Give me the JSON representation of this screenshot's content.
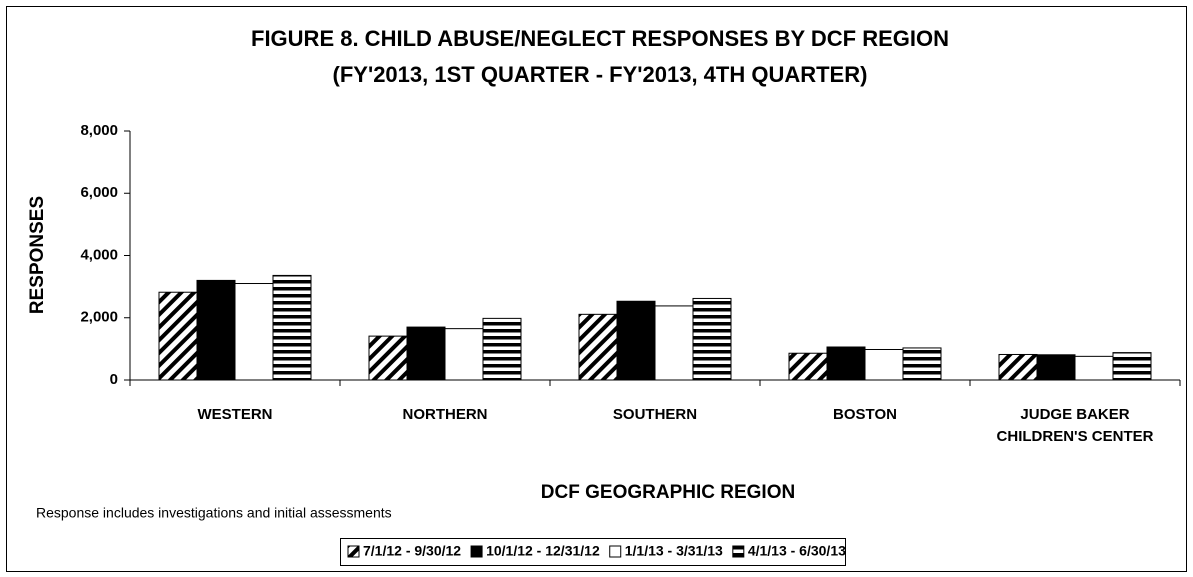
{
  "chart_data": {
    "type": "bar",
    "title": "FIGURE 8. CHILD ABUSE/NEGLECT RESPONSES BY DCF REGION",
    "subtitle": "(FY'2013, 1ST QUARTER - FY'2013, 4TH QUARTER)",
    "x_label": "DCF GEOGRAPHIC REGION",
    "y_label": "RESPONSES",
    "annotation": "Response includes investigations and initial assessments",
    "categories": [
      "WESTERN",
      "NORTHERN",
      "SOUTHERN",
      "BOSTON",
      "JUDGE BAKER CHILDREN'S CENTER"
    ],
    "series": [
      {
        "name": "7/1/12 - 9/30/12",
        "color": "#000000",
        "pattern": "diagonal",
        "values": [
          2820,
          1410,
          2110,
          860,
          820
        ]
      },
      {
        "name": "10/1/12 - 12/31/12",
        "color": "#000000",
        "pattern": "solid",
        "values": [
          3200,
          1700,
          2530,
          1060,
          810
        ]
      },
      {
        "name": "1/1/13 - 3/31/13",
        "color": "#000000",
        "pattern": "none",
        "values": [
          3100,
          1650,
          2380,
          980,
          760
        ]
      },
      {
        "name": "4/1/13 - 6/30/13",
        "color": "#000000",
        "pattern": "horizontal",
        "values": [
          3360,
          1980,
          2620,
          1030,
          880
        ]
      }
    ],
    "ylim": [
      0,
      8000
    ],
    "yticks": [
      0,
      {
        "value": 2000,
        "label": "2,000"
      },
      {
        "value": 4000,
        "label": "4,000"
      },
      {
        "value": 6000,
        "label": "6,000"
      },
      {
        "value": 8000,
        "label": "8,000"
      }
    ],
    "legend": "bottom",
    "grid": false
  }
}
